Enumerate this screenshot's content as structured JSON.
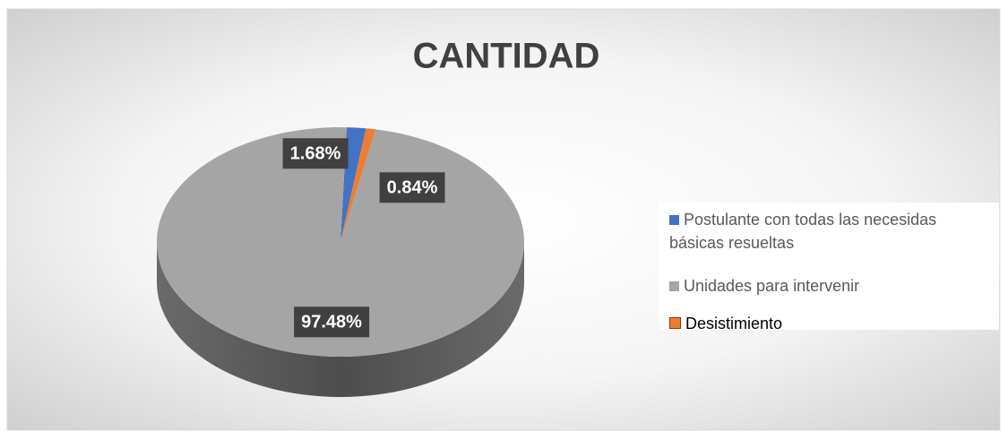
{
  "chart_data": {
    "type": "pie",
    "title": "CANTIDAD",
    "categories": [
      "Postulante con todas las necesidas básicas resueltas",
      "Unidades para intervenir",
      "Desistimiento"
    ],
    "values": [
      1.68,
      97.48,
      0.84
    ],
    "value_labels": [
      "1.68%",
      "97.48%",
      "0.84%"
    ],
    "colors": [
      "#4472c4",
      "#a5a5a5",
      "#ed7d31"
    ],
    "legend": "right"
  }
}
